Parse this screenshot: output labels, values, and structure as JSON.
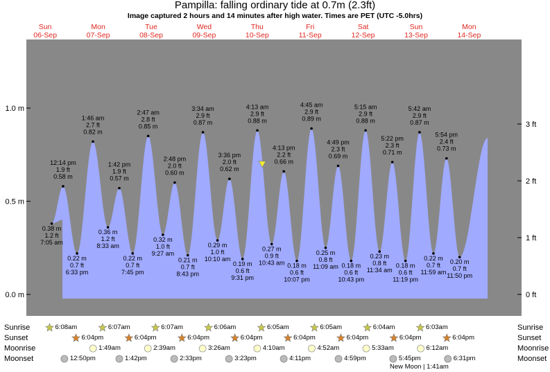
{
  "header": {
    "title": "Pampilla: falling  ordinary tide at 0.7m (2.3ft)",
    "subtitle": "Image captured 2 hours and 14 minutes after high water. Times are PET (UTC -5.0hrs)"
  },
  "colors": {
    "night": "#888888",
    "day": "#ffffc8",
    "tide_fill": "#a0aaff",
    "day_label": "#e0251e",
    "current_marker": "#f2ee2a"
  },
  "chart_data": {
    "type": "area",
    "title": "Pampilla: falling  ordinary tide at 0.7m (2.3ft)",
    "ylabel_left": "m",
    "ylabel_right": "ft",
    "ylim_m": [
      -0.05,
      1.13
    ],
    "yticks_left": [
      "0.0 m",
      "0.5 m",
      "1.0 m"
    ],
    "yticks_right": [
      "0 ft",
      "1 ft",
      "2 ft",
      "3 ft"
    ],
    "days": [
      {
        "dow": "Sun",
        "date": "06-Sep"
      },
      {
        "dow": "Mon",
        "date": "07-Sep"
      },
      {
        "dow": "Tue",
        "date": "08-Sep"
      },
      {
        "dow": "Wed",
        "date": "09-Sep"
      },
      {
        "dow": "Thu",
        "date": "10-Sep"
      },
      {
        "dow": "Fri",
        "date": "11-Sep"
      },
      {
        "dow": "Sat",
        "date": "12-Sep"
      },
      {
        "dow": "Sun",
        "date": "13-Sep"
      },
      {
        "dow": "Mon",
        "date": "14-Sep"
      }
    ],
    "tides": [
      {
        "day": 0,
        "time": "7:05 am",
        "ft": "1.2 ft",
        "m": 0.38,
        "mlabel": "0.38 m",
        "type": "low"
      },
      {
        "day": 0,
        "time": "12:14 pm",
        "ft": "1.9 ft",
        "m": 0.58,
        "mlabel": "0.58 m",
        "type": "high"
      },
      {
        "day": 0,
        "time": "6:33 pm",
        "ft": "0.7 ft",
        "m": 0.22,
        "mlabel": "0.22 m",
        "type": "low"
      },
      {
        "day": 1,
        "time": "1:46 am",
        "ft": "2.7 ft",
        "m": 0.82,
        "mlabel": "0.82 m",
        "type": "high"
      },
      {
        "day": 1,
        "time": "8:33 am",
        "ft": "1.2 ft",
        "m": 0.36,
        "mlabel": "0.36 m",
        "type": "low"
      },
      {
        "day": 1,
        "time": "1:42 pm",
        "ft": "1.9 ft",
        "m": 0.57,
        "mlabel": "0.57 m",
        "type": "high"
      },
      {
        "day": 1,
        "time": "7:45 pm",
        "ft": "0.7 ft",
        "m": 0.22,
        "mlabel": "0.22 m",
        "type": "low"
      },
      {
        "day": 2,
        "time": "2:47 am",
        "ft": "2.8 ft",
        "m": 0.85,
        "mlabel": "0.85 m",
        "type": "high"
      },
      {
        "day": 2,
        "time": "9:27 am",
        "ft": "1.0 ft",
        "m": 0.32,
        "mlabel": "0.32 m",
        "type": "low"
      },
      {
        "day": 2,
        "time": "2:48 pm",
        "ft": "2.0 ft",
        "m": 0.6,
        "mlabel": "0.60 m",
        "type": "high"
      },
      {
        "day": 2,
        "time": "8:43 pm",
        "ft": "0.7 ft",
        "m": 0.21,
        "mlabel": "0.21 m",
        "type": "low"
      },
      {
        "day": 3,
        "time": "3:34 am",
        "ft": "2.9 ft",
        "m": 0.87,
        "mlabel": "0.87 m",
        "type": "high"
      },
      {
        "day": 3,
        "time": "10:10 am",
        "ft": "1.0 ft",
        "m": 0.29,
        "mlabel": "0.29 m",
        "type": "low"
      },
      {
        "day": 3,
        "time": "3:36 pm",
        "ft": "2.0 ft",
        "m": 0.62,
        "mlabel": "0.62 m",
        "type": "high"
      },
      {
        "day": 3,
        "time": "9:31 pm",
        "ft": "0.6 ft",
        "m": 0.19,
        "mlabel": "0.19 m",
        "type": "low"
      },
      {
        "day": 4,
        "time": "4:13 am",
        "ft": "2.9 ft",
        "m": 0.88,
        "mlabel": "0.88 m",
        "type": "high"
      },
      {
        "day": 4,
        "time": "10:43 am",
        "ft": "0.9 ft",
        "m": 0.27,
        "mlabel": "0.27 m",
        "type": "low"
      },
      {
        "day": 4,
        "time": "4:13 pm",
        "ft": "2.2 ft",
        "m": 0.66,
        "mlabel": "0.66 m",
        "type": "high"
      },
      {
        "day": 4,
        "time": "10:07 pm",
        "ft": "0.6 ft",
        "m": 0.18,
        "mlabel": "0.18 m",
        "type": "low"
      },
      {
        "day": 5,
        "time": "4:45 am",
        "ft": "2.9 ft",
        "m": 0.89,
        "mlabel": "0.89 m",
        "type": "high"
      },
      {
        "day": 5,
        "time": "11:09 am",
        "ft": "0.8 ft",
        "m": 0.25,
        "mlabel": "0.25 m",
        "type": "low"
      },
      {
        "day": 5,
        "time": "4:49 pm",
        "ft": "2.3 ft",
        "m": 0.69,
        "mlabel": "0.69 m",
        "type": "high"
      },
      {
        "day": 5,
        "time": "10:43 pm",
        "ft": "0.6 ft",
        "m": 0.18,
        "mlabel": "0.18 m",
        "type": "low"
      },
      {
        "day": 6,
        "time": "5:15 am",
        "ft": "2.9 ft",
        "m": 0.88,
        "mlabel": "0.88 m",
        "type": "high"
      },
      {
        "day": 6,
        "time": "11:34 am",
        "ft": "0.8 ft",
        "m": 0.23,
        "mlabel": "0.23 m",
        "type": "low"
      },
      {
        "day": 6,
        "time": "5:22 pm",
        "ft": "2.3 ft",
        "m": 0.71,
        "mlabel": "0.71 m",
        "type": "high"
      },
      {
        "day": 6,
        "time": "11:19 pm",
        "ft": "0.6 ft",
        "m": 0.18,
        "mlabel": "0.18 m",
        "type": "low"
      },
      {
        "day": 7,
        "time": "5:42 am",
        "ft": "2.9 ft",
        "m": 0.87,
        "mlabel": "0.87 m",
        "type": "high"
      },
      {
        "day": 7,
        "time": "11:59 am",
        "ft": "0.7 ft",
        "m": 0.22,
        "mlabel": "0.22 m",
        "type": "low"
      },
      {
        "day": 7,
        "time": "5:54 pm",
        "ft": "2.4 ft",
        "m": 0.73,
        "mlabel": "0.73 m",
        "type": "high"
      },
      {
        "day": 7,
        "time": "11:50 pm",
        "ft": "0.7 ft",
        "m": 0.2,
        "mlabel": "0.20 m",
        "type": "low"
      }
    ],
    "current": {
      "day": 4,
      "time": "6:27 am",
      "m": 0.7,
      "label": "falling  ordinary tide at 0.7m (2.3ft)"
    }
  },
  "astro": {
    "labels": {
      "sunrise": "Sunrise",
      "sunset": "Sunset",
      "moonrise": "Moonrise",
      "moonset": "Moonset"
    },
    "sunrise": [
      "6:08am",
      "6:07am",
      "6:07am",
      "6:06am",
      "6:05am",
      "6:05am",
      "6:04am",
      "6:03am"
    ],
    "sunset": [
      "6:04pm",
      "6:04pm",
      "6:04pm",
      "6:04pm",
      "6:04pm",
      "6:04pm",
      "6:04pm",
      "6:04pm"
    ],
    "moonrise": [
      "1:49am",
      "2:39am",
      "3:26am",
      "4:10am",
      "4:52am",
      "5:33am",
      "6:12am"
    ],
    "moonset": [
      "12:50pm",
      "1:42pm",
      "2:33pm",
      "3:23pm",
      "4:11pm",
      "4:59pm",
      "5:45pm",
      "6:31pm"
    ],
    "new_moon": "New Moon | 1:41am"
  }
}
